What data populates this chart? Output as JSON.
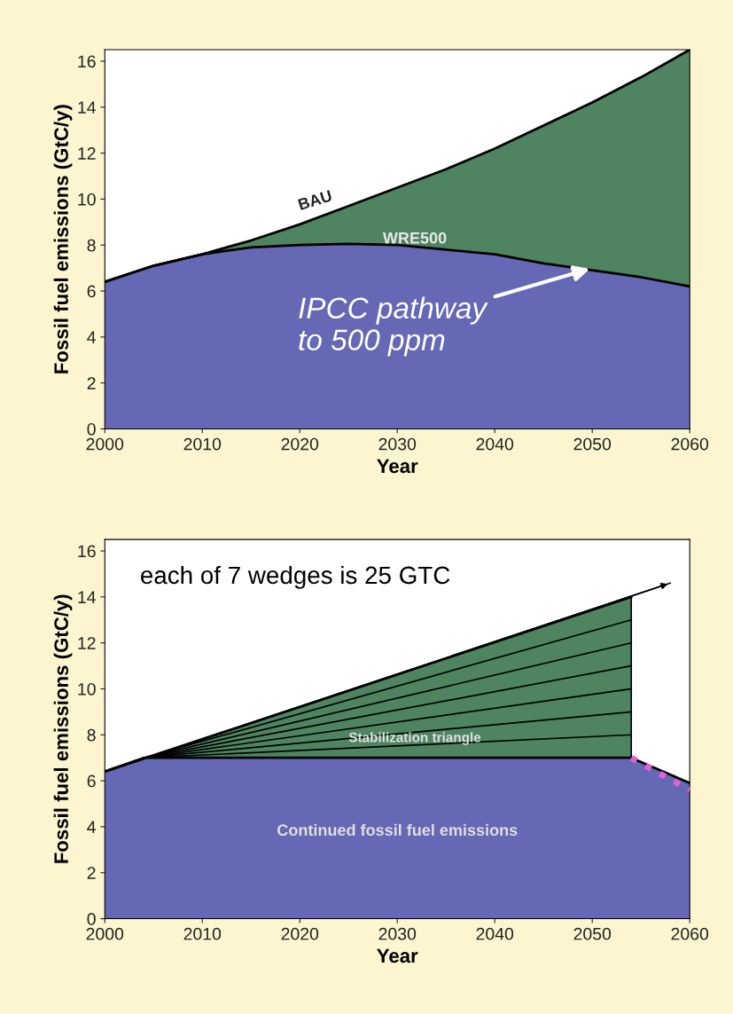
{
  "chart_data": [
    {
      "type": "area",
      "xlabel": "Year",
      "ylabel": "Fossil fuel emissions (GtC/y)",
      "xlim": [
        2000,
        2060
      ],
      "ylim": [
        0,
        16.5
      ],
      "xticks": [
        2000,
        2010,
        2020,
        2030,
        2040,
        2050,
        2060
      ],
      "yticks": [
        0,
        2,
        4,
        6,
        8,
        10,
        12,
        14,
        16
      ],
      "grid": false,
      "legend": false,
      "annotations": [
        {
          "text": "IPCC pathway\nto 500 ppm",
          "x": 2050,
          "y": 7.0
        }
      ],
      "series": [
        {
          "name": "BAU",
          "color": "#4e8560",
          "x": [
            2000,
            2005,
            2010,
            2015,
            2020,
            2025,
            2030,
            2035,
            2040,
            2045,
            2050,
            2055,
            2060
          ],
          "values": [
            6.4,
            7.1,
            7.6,
            8.2,
            8.9,
            9.7,
            10.5,
            11.3,
            12.2,
            13.2,
            14.2,
            15.3,
            16.5
          ]
        },
        {
          "name": "WRE500",
          "color": "#6468b5",
          "x": [
            2000,
            2005,
            2010,
            2015,
            2020,
            2025,
            2030,
            2035,
            2040,
            2045,
            2050,
            2055,
            2060
          ],
          "values": [
            6.4,
            7.1,
            7.6,
            7.9,
            8.0,
            8.05,
            8.0,
            7.8,
            7.6,
            7.2,
            6.9,
            6.6,
            6.2
          ]
        }
      ]
    },
    {
      "type": "area",
      "xlabel": "Year",
      "ylabel": "Fossil fuel emissions (GtC/y)",
      "xlim": [
        2000,
        2060
      ],
      "ylim": [
        0,
        16.5
      ],
      "xticks": [
        2000,
        2010,
        2020,
        2030,
        2040,
        2050,
        2060
      ],
      "yticks": [
        0,
        2,
        4,
        6,
        8,
        10,
        12,
        14,
        16
      ],
      "grid": false,
      "legend": false,
      "annotations": [
        "each of 7 wedges is 25 GTC"
      ],
      "series": [
        {
          "name": "Stabilization triangle",
          "color": "#4e8560",
          "x": [
            2000,
            2054
          ],
          "values": [
            6.4,
            14.0
          ]
        },
        {
          "name": "Continued fossil fuel emissions",
          "color": "#6468b5",
          "x": [
            2000,
            2004,
            2054,
            2060
          ],
          "values": [
            6.4,
            7.0,
            7.0,
            5.9
          ]
        },
        {
          "type": "line",
          "color": "#000000",
          "x": [
            2004,
            2054
          ],
          "values": [
            7.0,
            8.0
          ]
        },
        {
          "type": "line",
          "color": "#000000",
          "x": [
            2004,
            2054
          ],
          "values": [
            7.0,
            9.0
          ]
        },
        {
          "type": "line",
          "color": "#000000",
          "x": [
            2004,
            2054
          ],
          "values": [
            7.0,
            10.0
          ]
        },
        {
          "type": "line",
          "color": "#000000",
          "x": [
            2004,
            2054
          ],
          "values": [
            7.0,
            11.0
          ]
        },
        {
          "type": "line",
          "color": "#000000",
          "x": [
            2004,
            2054
          ],
          "values": [
            7.0,
            12.0
          ]
        },
        {
          "type": "line",
          "color": "#000000",
          "x": [
            2004,
            2054
          ],
          "values": [
            7.0,
            13.0
          ]
        },
        {
          "type": "line",
          "color": "#000000",
          "x": [
            2054,
            2054
          ],
          "values": [
            7.0,
            14.0
          ]
        },
        {
          "type": "line",
          "color": "#000000",
          "x": [
            2000,
            2058
          ],
          "values": [
            6.4,
            14.6
          ]
        },
        {
          "type": "line",
          "color": "#e060d8",
          "line_style": "dotted",
          "x": [
            2054,
            2060
          ],
          "values": [
            7.0,
            5.6
          ]
        }
      ]
    }
  ]
}
